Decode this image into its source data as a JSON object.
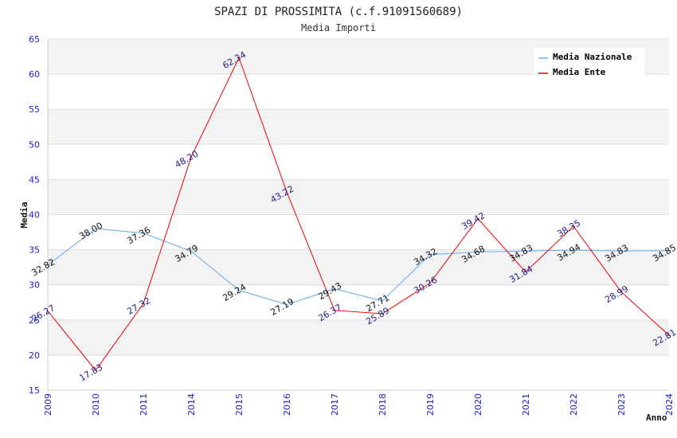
{
  "chart_data": {
    "type": "line",
    "title": "SPAZI DI PROSSIMITA (c.f.91091560689)",
    "subtitle": "Media Importi",
    "xlabel": "Anno",
    "ylabel": "Media",
    "ylim": [
      15,
      65
    ],
    "yticks": [
      15,
      20,
      25,
      30,
      35,
      40,
      45,
      50,
      55,
      60,
      65
    ],
    "categories": [
      "2009",
      "2010",
      "2011",
      "2014",
      "2015",
      "2016",
      "2017",
      "2018",
      "2019",
      "2020",
      "2021",
      "2022",
      "2023",
      "2024"
    ],
    "series": [
      {
        "name": "Media Nazionale",
        "color": "#66aaee",
        "label_color": "#111111",
        "values": [
          32.82,
          38.0,
          37.36,
          34.79,
          29.24,
          27.19,
          29.43,
          27.71,
          34.32,
          34.68,
          34.83,
          34.94,
          34.83,
          34.85
        ],
        "labels": [
          "32.82",
          "38.00",
          "37.36",
          "34.79",
          "29.24",
          "27.19",
          "29.43",
          "27.71",
          "34.32",
          "34.68",
          "34.83",
          "34.94",
          "34.83",
          "34.85"
        ]
      },
      {
        "name": "Media Ente",
        "color": "#ee0000",
        "label_color": "#1c1c8c",
        "values": [
          26.27,
          17.83,
          27.32,
          48.2,
          62.34,
          43.22,
          26.37,
          25.89,
          30.26,
          39.42,
          31.84,
          38.35,
          28.99,
          22.81
        ],
        "labels": [
          "26.27",
          "17.83",
          "27.32",
          "48.20",
          "62.34",
          "43.22",
          "26.37",
          "25.89",
          "30.26",
          "39.42",
          "31.84",
          "38.35",
          "28.99",
          "22.81"
        ]
      }
    ],
    "grid": true,
    "legend_position": "top-right"
  }
}
